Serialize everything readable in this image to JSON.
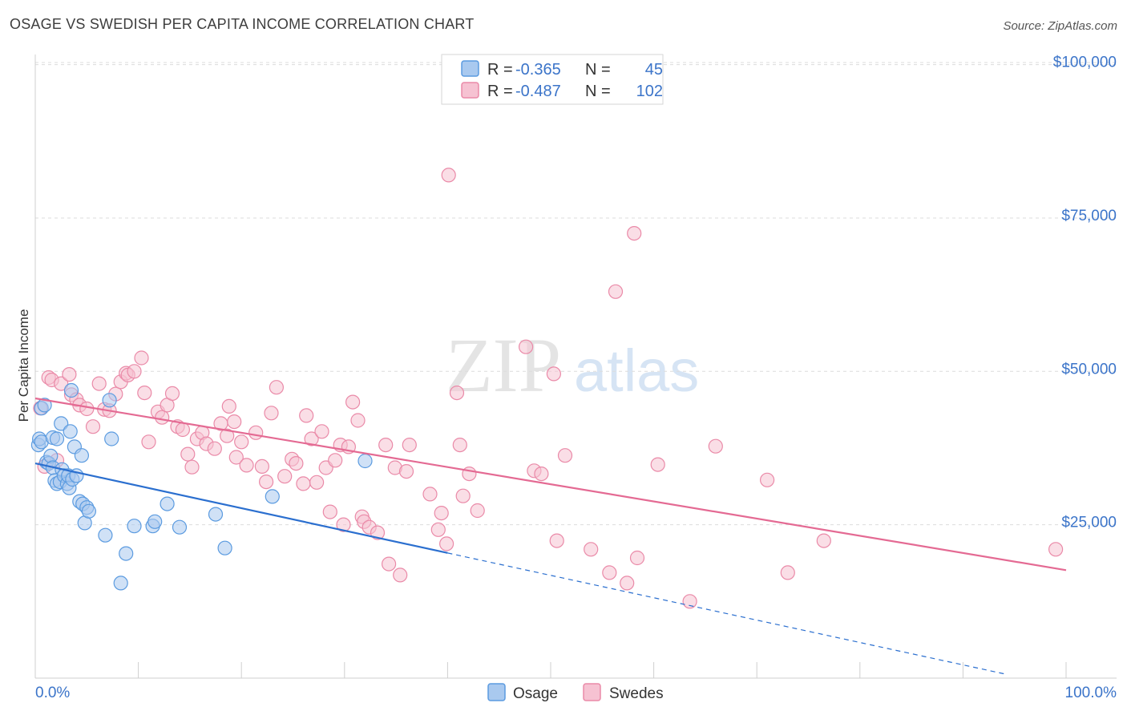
{
  "header": {
    "title": "OSAGE VS SWEDISH PER CAPITA INCOME CORRELATION CHART",
    "source": "Source: ZipAtlas.com"
  },
  "watermark": {
    "zip": "ZIP",
    "atlas": "atlas"
  },
  "colors": {
    "osage": "#5b9be0",
    "osage_fill": "#a9c9ef",
    "osage_line": "#2b6fcf",
    "swedes": "#ea8aa8",
    "swedes_fill": "#f6c2d2",
    "swedes_line": "#e46a93",
    "tick_label": "#3b74c9",
    "grid": "#dcdcdc"
  },
  "legend": {
    "osage": {
      "r_label": "R =",
      "r_value": "-0.365",
      "n_label": "N =",
      "n_value": "45"
    },
    "swedes": {
      "r_label": "R =",
      "r_value": "-0.487",
      "n_label": "N =",
      "n_value": "102"
    }
  },
  "bottom_legend": {
    "osage": "Osage",
    "swedes": "Swedes"
  },
  "chart_data": {
    "type": "scatter",
    "title": "OSAGE VS SWEDISH PER CAPITA INCOME CORRELATION CHART",
    "xlabel": "",
    "ylabel": "Per Capita Income",
    "xlim": [
      0,
      100
    ],
    "ylim": [
      0,
      102000
    ],
    "x_tick_labels": [
      "0.0%",
      "100.0%"
    ],
    "y_ticks": [
      25000,
      50000,
      75000,
      100000
    ],
    "y_tick_labels": [
      "$25,000",
      "$50,000",
      "$75,000",
      "$100,000"
    ],
    "grid": true,
    "legend_position": "top-center",
    "series": [
      {
        "name": "Osage",
        "r": -0.365,
        "n": 45,
        "trend": {
          "x0": 0,
          "y0": 35000,
          "x1": 40,
          "y1": 20400,
          "dashed_to_x": 94,
          "dashed_to_y": 700
        },
        "points": [
          [
            0.3,
            38000
          ],
          [
            0.4,
            39000
          ],
          [
            0.6,
            44000
          ],
          [
            0.6,
            38500
          ],
          [
            0.9,
            44500
          ],
          [
            1.1,
            35200
          ],
          [
            1.3,
            35000
          ],
          [
            1.5,
            36200
          ],
          [
            1.7,
            34300
          ],
          [
            1.7,
            39200
          ],
          [
            1.9,
            32200
          ],
          [
            2.1,
            31700
          ],
          [
            2.1,
            39000
          ],
          [
            2.4,
            32000
          ],
          [
            2.5,
            41500
          ],
          [
            2.6,
            34000
          ],
          [
            2.8,
            33000
          ],
          [
            3.1,
            31700
          ],
          [
            3.2,
            33000
          ],
          [
            3.3,
            31000
          ],
          [
            3.4,
            40200
          ],
          [
            3.5,
            46900
          ],
          [
            3.6,
            32400
          ],
          [
            3.8,
            37700
          ],
          [
            4.0,
            33000
          ],
          [
            4.3,
            28800
          ],
          [
            4.5,
            36300
          ],
          [
            4.6,
            28400
          ],
          [
            4.8,
            25300
          ],
          [
            5.0,
            27800
          ],
          [
            5.2,
            27200
          ],
          [
            6.8,
            23300
          ],
          [
            7.2,
            45300
          ],
          [
            7.4,
            39000
          ],
          [
            8.3,
            15500
          ],
          [
            8.8,
            20300
          ],
          [
            9.6,
            24800
          ],
          [
            11.4,
            24800
          ],
          [
            11.6,
            25500
          ],
          [
            12.8,
            28400
          ],
          [
            14.0,
            24600
          ],
          [
            17.5,
            26700
          ],
          [
            18.4,
            21200
          ],
          [
            23.0,
            29600
          ],
          [
            32.0,
            35400
          ]
        ]
      },
      {
        "name": "Swedes",
        "r": -0.487,
        "n": 102,
        "trend": {
          "x0": 0,
          "y0": 45600,
          "x1": 100,
          "y1": 17600
        },
        "points": [
          [
            0.5,
            44000
          ],
          [
            0.9,
            34500
          ],
          [
            1.3,
            49000
          ],
          [
            1.6,
            48600
          ],
          [
            2.1,
            35500
          ],
          [
            2.5,
            48000
          ],
          [
            3.3,
            49500
          ],
          [
            3.5,
            46200
          ],
          [
            4.0,
            45400
          ],
          [
            4.3,
            44500
          ],
          [
            5.0,
            43900
          ],
          [
            5.6,
            41000
          ],
          [
            6.2,
            48000
          ],
          [
            6.7,
            43800
          ],
          [
            7.2,
            43600
          ],
          [
            7.8,
            46300
          ],
          [
            8.3,
            48300
          ],
          [
            8.8,
            49700
          ],
          [
            9.0,
            49400
          ],
          [
            9.6,
            50000
          ],
          [
            10.3,
            52200
          ],
          [
            10.6,
            46500
          ],
          [
            11.0,
            38500
          ],
          [
            11.9,
            43400
          ],
          [
            12.3,
            42500
          ],
          [
            12.8,
            44500
          ],
          [
            13.3,
            46400
          ],
          [
            13.8,
            41000
          ],
          [
            14.3,
            40500
          ],
          [
            14.8,
            36500
          ],
          [
            15.2,
            34400
          ],
          [
            15.7,
            39000
          ],
          [
            16.2,
            40000
          ],
          [
            16.6,
            38200
          ],
          [
            17.4,
            37400
          ],
          [
            18.0,
            41500
          ],
          [
            18.6,
            39500
          ],
          [
            18.8,
            44300
          ],
          [
            19.3,
            41800
          ],
          [
            19.5,
            36000
          ],
          [
            20.0,
            38500
          ],
          [
            20.5,
            34700
          ],
          [
            21.4,
            40000
          ],
          [
            22.0,
            34500
          ],
          [
            22.4,
            32000
          ],
          [
            22.9,
            43200
          ],
          [
            23.4,
            47400
          ],
          [
            24.2,
            32900
          ],
          [
            24.9,
            35700
          ],
          [
            25.3,
            35000
          ],
          [
            26.0,
            31700
          ],
          [
            26.3,
            42800
          ],
          [
            26.8,
            39000
          ],
          [
            27.3,
            31900
          ],
          [
            27.8,
            40200
          ],
          [
            28.2,
            34300
          ],
          [
            28.6,
            27100
          ],
          [
            29.1,
            35500
          ],
          [
            29.6,
            38000
          ],
          [
            29.9,
            25000
          ],
          [
            30.4,
            37700
          ],
          [
            30.8,
            45000
          ],
          [
            31.3,
            42000
          ],
          [
            31.7,
            26300
          ],
          [
            31.9,
            25500
          ],
          [
            32.4,
            24600
          ],
          [
            33.2,
            23700
          ],
          [
            34.0,
            38000
          ],
          [
            34.3,
            18600
          ],
          [
            34.9,
            34300
          ],
          [
            35.4,
            16800
          ],
          [
            36.0,
            33700
          ],
          [
            36.3,
            38000
          ],
          [
            38.3,
            30000
          ],
          [
            39.1,
            24200
          ],
          [
            39.4,
            26900
          ],
          [
            39.9,
            21900
          ],
          [
            40.1,
            82000
          ],
          [
            40.9,
            46500
          ],
          [
            41.2,
            38000
          ],
          [
            41.5,
            29700
          ],
          [
            42.1,
            33300
          ],
          [
            42.9,
            27300
          ],
          [
            47.6,
            54000
          ],
          [
            48.4,
            33800
          ],
          [
            49.1,
            33300
          ],
          [
            50.3,
            49600
          ],
          [
            50.6,
            22400
          ],
          [
            51.4,
            36300
          ],
          [
            53.9,
            21000
          ],
          [
            55.7,
            17200
          ],
          [
            56.3,
            63000
          ],
          [
            57.4,
            15500
          ],
          [
            58.4,
            19600
          ],
          [
            58.1,
            72500
          ],
          [
            60.4,
            34800
          ],
          [
            63.5,
            12500
          ],
          [
            66.0,
            37800
          ],
          [
            71.0,
            32300
          ],
          [
            73.0,
            17200
          ],
          [
            76.5,
            22400
          ],
          [
            99.0,
            21000
          ]
        ]
      }
    ]
  }
}
